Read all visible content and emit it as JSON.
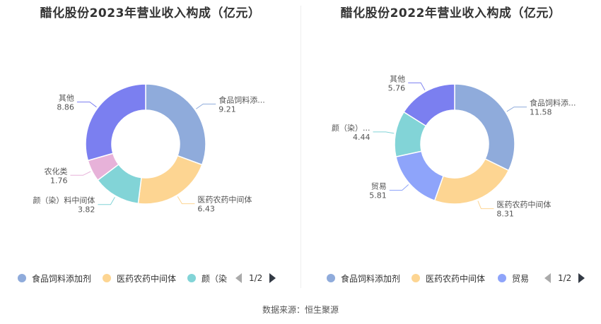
{
  "colors": {
    "feed": "#8fabdb",
    "pharma": "#fdd592",
    "dye": "#82d4d7",
    "agro": "#e7b2d9",
    "trade": "#8ea4fa",
    "other": "#7b7ff0"
  },
  "source": "数据来源：恒生聚源",
  "chart_data": [
    {
      "type": "pie",
      "title": "醋化股份2023年营业收入构成（亿元）",
      "slices": [
        {
          "name": "食品饲料添...",
          "value": 9.21,
          "value_label": "9.21",
          "color_key": "feed"
        },
        {
          "name": "医药农药中间体",
          "value": 6.43,
          "value_label": "6.43",
          "color_key": "pharma"
        },
        {
          "name": "颜（染）料中间体",
          "value": 3.82,
          "value_label": "3.82",
          "color_key": "dye"
        },
        {
          "name": "农化类",
          "value": 1.76,
          "value_label": "1.76",
          "color_key": "agro"
        },
        {
          "name": "其他",
          "value": 8.86,
          "value_label": "8.86",
          "color_key": "other"
        }
      ],
      "legend": {
        "items": [
          {
            "label": "食品饲料添加剂",
            "color_key": "feed"
          },
          {
            "label": "医药农药中间体",
            "color_key": "pharma"
          },
          {
            "label": "颜（染",
            "color_key": "dye"
          }
        ],
        "page": "1/2"
      }
    },
    {
      "type": "pie",
      "title": "醋化股份2022年营业收入构成（亿元）",
      "slices": [
        {
          "name": "食品饲料添...",
          "value": 11.58,
          "value_label": "11.58",
          "color_key": "feed"
        },
        {
          "name": "医药农药中间体",
          "value": 8.31,
          "value_label": "8.31",
          "color_key": "pharma"
        },
        {
          "name": "贸易",
          "value": 5.81,
          "value_label": "5.81",
          "color_key": "trade"
        },
        {
          "name": "颜（染）...",
          "value": 4.44,
          "value_label": "4.44",
          "color_key": "dye"
        },
        {
          "name": "其他",
          "value": 5.76,
          "value_label": "5.76",
          "color_key": "other"
        }
      ],
      "legend": {
        "items": [
          {
            "label": "食品饲料添加剂",
            "color_key": "feed"
          },
          {
            "label": "医药农药中间体",
            "color_key": "pharma"
          },
          {
            "label": "贸易",
            "color_key": "trade"
          }
        ],
        "page": "1/2"
      }
    }
  ]
}
